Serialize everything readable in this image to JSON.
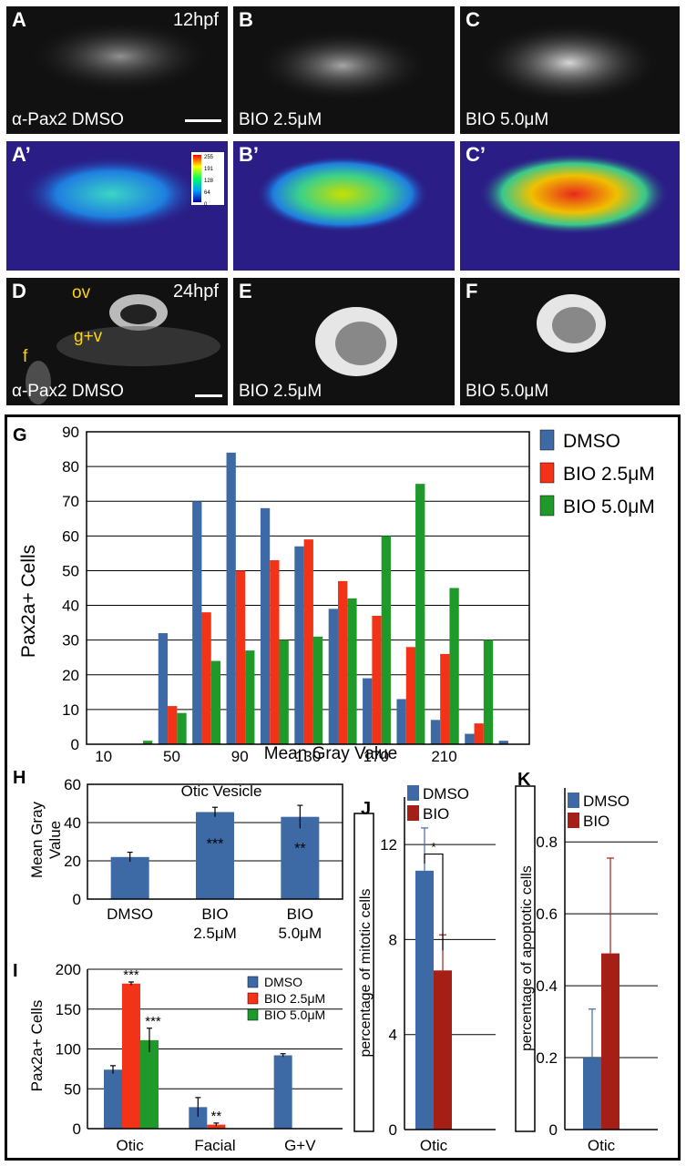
{
  "panels": {
    "A": {
      "letter": "A",
      "time": "12hpf",
      "caption": "α-Pax2 DMSO"
    },
    "B": {
      "letter": "B",
      "caption": "BIO 2.5μM"
    },
    "C": {
      "letter": "C",
      "caption": "BIO 5.0μM"
    },
    "Ap": {
      "letter": "A’",
      "colorbar_ticks": [
        "255",
        "191",
        "128",
        "64",
        "0"
      ]
    },
    "Bp": {
      "letter": "B’"
    },
    "Cp": {
      "letter": "C’"
    },
    "D": {
      "letter": "D",
      "time": "24hpf",
      "caption": "α-Pax2 DMSO",
      "labels": [
        "ov",
        "g+v",
        "f"
      ]
    },
    "E": {
      "letter": "E",
      "caption": "BIO 2.5μM"
    },
    "F": {
      "letter": "F",
      "caption": "BIO 5.0μM"
    }
  },
  "chart_data": [
    {
      "id": "G",
      "letter": "G",
      "type": "bar",
      "ylabel": "Pax2a+ Cells",
      "xlabel": "Mean Gray Value",
      "ylim": [
        0,
        90
      ],
      "yticks": [
        0,
        10,
        20,
        30,
        40,
        50,
        60,
        70,
        80,
        90
      ],
      "categories": [
        "10",
        "30",
        "50",
        "70",
        "90",
        "110",
        "130",
        "150",
        "170",
        "190",
        "210",
        "230",
        "250"
      ],
      "xtick_labels": [
        "10",
        "50",
        "90",
        "130",
        "170",
        "210"
      ],
      "legend_position": "right",
      "series": [
        {
          "name": "DMSO",
          "color": "#3d6aa4",
          "values": [
            0,
            0,
            32,
            70,
            84,
            68,
            57,
            39,
            19,
            13,
            7,
            3,
            1
          ]
        },
        {
          "name": "BIO 2.5μM",
          "color": "#f23318",
          "values": [
            0,
            0,
            11,
            38,
            50,
            53,
            59,
            47,
            37,
            28,
            26,
            6,
            0
          ]
        },
        {
          "name": "BIO 5.0μM",
          "color": "#1f9a2a",
          "values": [
            0,
            1,
            9,
            24,
            27,
            30,
            31,
            42,
            60,
            75,
            45,
            30,
            0
          ]
        }
      ]
    },
    {
      "id": "H",
      "letter": "H",
      "type": "bar",
      "title": "Otic Vesicle",
      "ylabel": "Mean Gray Value",
      "ylim": [
        0,
        60
      ],
      "yticks": [
        0,
        20,
        40,
        60
      ],
      "categories": [
        "DMSO",
        "BIO 2.5μM",
        "BIO 5.0μM"
      ],
      "values": [
        22,
        45.5,
        43
      ],
      "errors": [
        2.5,
        2.5,
        6
      ],
      "significance": [
        "",
        "***",
        "**"
      ],
      "color": "#3d6aa4"
    },
    {
      "id": "I",
      "letter": "I",
      "type": "bar",
      "ylabel": "Pax2a+ Cells",
      "ylim": [
        0,
        200
      ],
      "yticks": [
        0,
        50,
        100,
        150,
        200
      ],
      "categories": [
        "Otic",
        "Facial",
        "G+V"
      ],
      "series": [
        {
          "name": "DMSO",
          "color": "#3d6aa4",
          "values": [
            74,
            27,
            92
          ],
          "errors": [
            5,
            12,
            2
          ]
        },
        {
          "name": "BIO 2.5μM",
          "color": "#f23318",
          "values": [
            182,
            5,
            0
          ],
          "errors": [
            2,
            2,
            0
          ]
        },
        {
          "name": "BIO 5.0μM",
          "color": "#1f9a2a",
          "values": [
            111,
            0,
            0
          ],
          "errors": [
            15,
            0,
            0
          ]
        }
      ],
      "significance": {
        "Otic": [
          "",
          "***",
          "***"
        ],
        "Facial": [
          "",
          "**",
          ""
        ]
      }
    },
    {
      "id": "J",
      "letter": "J",
      "type": "bar",
      "ylabel": "percentage of mitotic cells",
      "ylim": [
        0,
        14
      ],
      "yticks": [
        0,
        4,
        8,
        12
      ],
      "categories": [
        "Otic"
      ],
      "series": [
        {
          "name": "DMSO",
          "color": "#3d6aa4",
          "values": [
            10.9
          ],
          "errors": [
            1.8
          ]
        },
        {
          "name": "BIO",
          "color": "#a51f16",
          "values": [
            6.7
          ],
          "errors": [
            1.5
          ]
        }
      ],
      "significance": "*"
    },
    {
      "id": "K",
      "letter": "K",
      "type": "bar",
      "ylabel": "percentage of apoptotic cells",
      "ylim": [
        0,
        0.95
      ],
      "yticks": [
        "0",
        "0.2",
        "0.4",
        "0.6",
        "0.8"
      ],
      "categories": [
        "Otic"
      ],
      "series": [
        {
          "name": "DMSO",
          "color": "#3d6aa4",
          "values": [
            0.2
          ],
          "errors": [
            0.135
          ]
        },
        {
          "name": "BIO",
          "color": "#a51f16",
          "values": [
            0.49
          ],
          "errors": [
            0.265
          ]
        }
      ]
    }
  ]
}
